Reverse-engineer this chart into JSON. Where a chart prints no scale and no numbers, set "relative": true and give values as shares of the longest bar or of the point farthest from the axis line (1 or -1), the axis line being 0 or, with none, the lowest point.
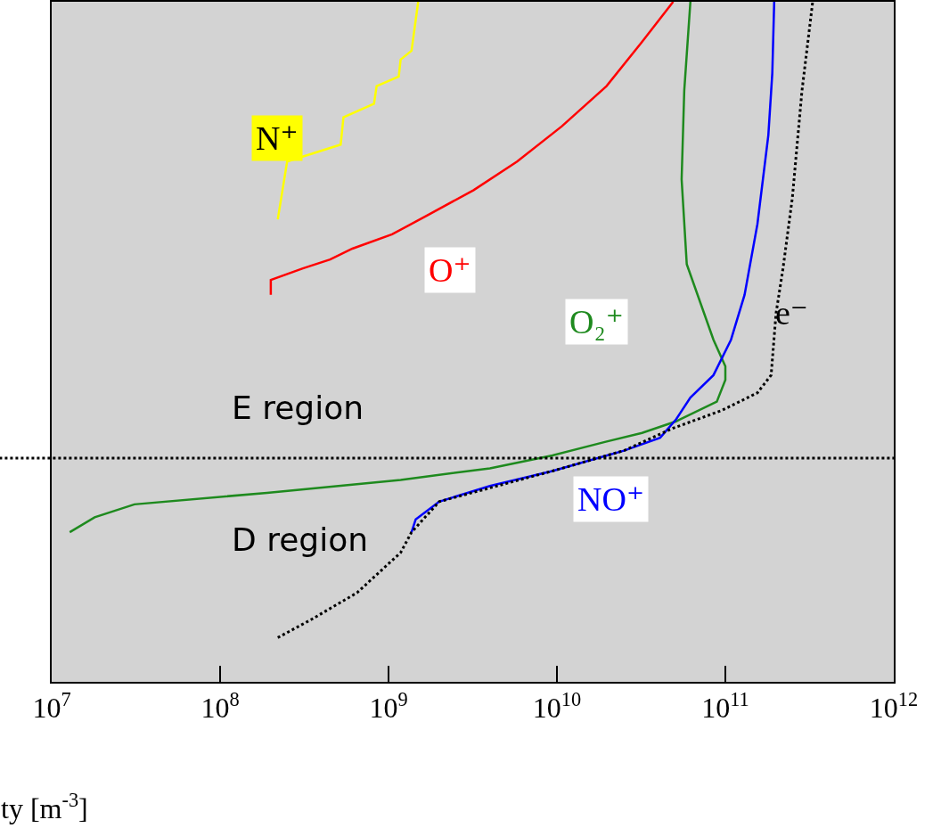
{
  "chart_data": {
    "type": "line",
    "relative": true,
    "log": "x",
    "xlabel": "ty [m$^{-3}$]",
    "xlim": [
      10000000,
      1000000000000
    ],
    "xticks": [
      {
        "value": 10000000,
        "label": "10$^{7}$"
      },
      {
        "value": 100000000,
        "label": "10$^{8}$"
      },
      {
        "value": 1000000000,
        "label": "10$^{9}$"
      },
      {
        "value": 10000000000,
        "label": "10$^{10}$"
      },
      {
        "value": 100000000000,
        "label": "10$^{11}$"
      },
      {
        "value": 1000000000000,
        "label": "10$^{12}$"
      }
    ],
    "grid": false,
    "legend": false,
    "series": [
      {
        "name": "N⁺",
        "color": "#ffff00",
        "x": [
          220000000.0,
          250000000.0,
          520000000.0,
          540000000.0,
          820000000.0,
          850000000.0,
          1150000000.0,
          1180000000.0,
          1370000000.0,
          1500000000.0
        ],
        "values": [
          0.68,
          0.765,
          0.79,
          0.83,
          0.85,
          0.876,
          0.89,
          0.915,
          0.928,
          1
        ]
      },
      {
        "name": "O⁺",
        "color": "#ff0000",
        "x": [
          200000000.0,
          200000000.0,
          310000000.0,
          450000000.0,
          610000000.0,
          1050000000.0,
          1700000000.0,
          3200000000.0,
          5800000000.0,
          10700000000.0,
          19700000000.0,
          32000000000.0,
          49000000000.0
        ],
        "values": [
          0.569,
          0.591,
          0.608,
          0.621,
          0.637,
          0.658,
          0.686,
          0.723,
          0.765,
          0.817,
          0.876,
          0.941,
          1
        ]
      },
      {
        "name": "O₂⁺",
        "color": "#1e8a1e",
        "x": [
          12800000.0,
          18000000.0,
          31000000.0,
          190000000.0,
          1180000000.0,
          4000000000.0,
          9400000000.0,
          19500000000.0,
          32000000000.0,
          51000000000.0,
          89000000000.0,
          100000000000.0,
          100000000000.0,
          85000000000.0,
          59000000000.0,
          55000000000.0,
          57000000000.0,
          62000000000.0
        ],
        "values": [
          0.22,
          0.242,
          0.261,
          0.278,
          0.297,
          0.314,
          0.333,
          0.353,
          0.366,
          0.383,
          0.412,
          0.444,
          0.464,
          0.503,
          0.614,
          0.739,
          0.869,
          1
        ]
      },
      {
        "name": "NO⁺",
        "color": "#0000ff",
        "x": [
          1370000000.0,
          1450000000.0,
          2000000000.0,
          4000000000.0,
          9400000000.0,
          25000000000.0,
          41000000000.0,
          51000000000.0,
          62000000000.0,
          85000000000.0,
          108000000000.0,
          130000000000.0,
          155000000000.0,
          180000000000.0,
          190000000000.0,
          195000000000.0
        ],
        "values": [
          0.22,
          0.239,
          0.265,
          0.288,
          0.31,
          0.34,
          0.359,
          0.386,
          0.418,
          0.451,
          0.503,
          0.569,
          0.673,
          0.804,
          0.895,
          1
        ]
      },
      {
        "name": "e⁻",
        "color": "#000000",
        "line_style": "dotted",
        "x": [
          220000000.0,
          350000000.0,
          650000000.0,
          1180000000.0,
          1370000000.0,
          2000000000.0,
          9400000000.0,
          25000000000.0,
          49000000000.0,
          95000000000.0,
          155000000000.0,
          187000000000.0,
          200000000000.0,
          220000000000.0,
          250000000000.0,
          285000000000.0,
          330000000000.0
        ],
        "values": [
          0.065,
          0.092,
          0.131,
          0.19,
          0.22,
          0.265,
          0.31,
          0.34,
          0.373,
          0.399,
          0.425,
          0.451,
          0.542,
          0.608,
          0.712,
          0.869,
          1
        ]
      }
    ],
    "ref_lines": [
      {
        "axis": "y",
        "value": 0.329,
        "color": "#000000",
        "line_style": "dotted"
      }
    ],
    "annotations": [
      "E region",
      "D region"
    ]
  }
}
